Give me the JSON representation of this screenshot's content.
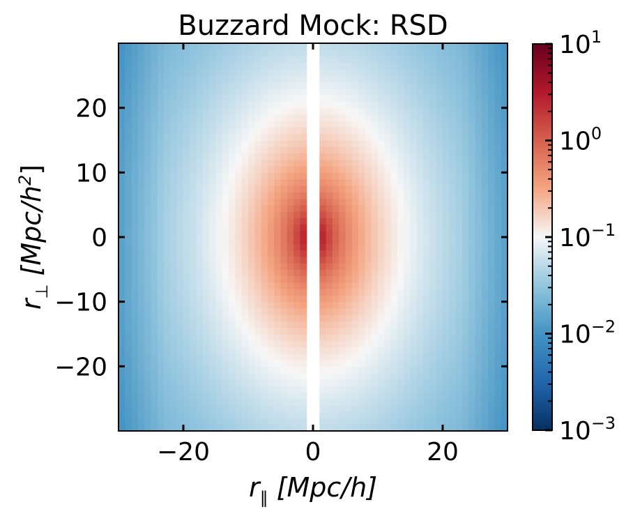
{
  "chart_data": {
    "type": "heatmap",
    "title": "Buzzard Mock: RSD",
    "xlabel": {
      "symbol": "r",
      "subscript": "∥",
      "units": "[Mpc/h]"
    },
    "ylabel": {
      "symbol": "r",
      "subscript": "⊥",
      "units_prefix": "[Mpc/h",
      "units_sup": "2",
      "units_suffix": "]"
    },
    "xlim": [
      -30,
      30
    ],
    "ylim": [
      -30,
      30
    ],
    "x_ticks": [
      -20,
      0,
      20
    ],
    "x_tick_labels": [
      "−20",
      "0",
      "20"
    ],
    "y_ticks": [
      -20,
      -10,
      0,
      10,
      20
    ],
    "y_tick_labels": [
      "−20",
      "−10",
      "0",
      "10",
      "20"
    ],
    "colorbar": {
      "scale": "log",
      "range": [
        0.001,
        10
      ],
      "ticks": [
        {
          "value": 0.001,
          "base": "10",
          "exp": "−3"
        },
        {
          "value": 0.01,
          "base": "10",
          "exp": "−2"
        },
        {
          "value": 0.1,
          "base": "10",
          "exp": "−1"
        },
        {
          "value": 1,
          "base": "10",
          "exp": "0"
        },
        {
          "value": 10,
          "base": "10",
          "exp": "1"
        }
      ],
      "colormap": "RdBu_r"
    },
    "grid": false,
    "masked_region_x": [
      -1.5,
      1.5
    ],
    "peak_value": 10,
    "pattern": "Kaiser-squashed ellipse centered at origin, masked for |r_parallel| < 1.5"
  }
}
